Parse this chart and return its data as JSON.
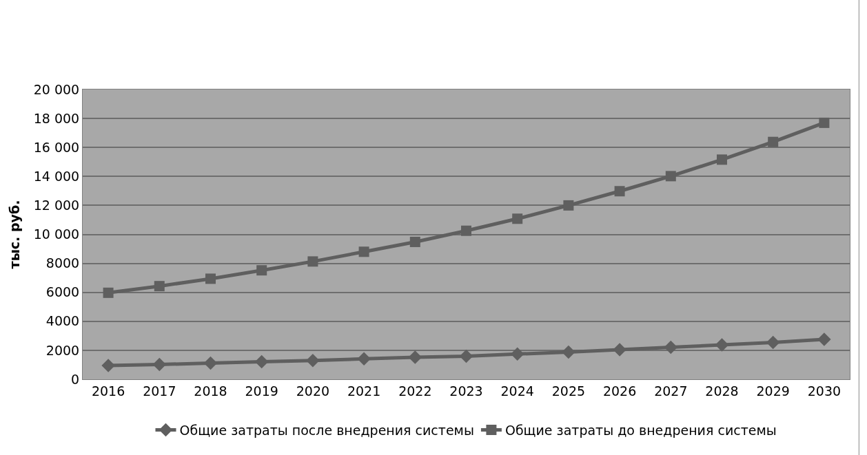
{
  "chart_data": {
    "type": "line",
    "ylabel": "тыс. руб.",
    "categories": [
      "2016",
      "2017",
      "2018",
      "2019",
      "2020",
      "2021",
      "2022",
      "2023",
      "2024",
      "2025",
      "2026",
      "2027",
      "2028",
      "2029",
      "2030"
    ],
    "series": [
      {
        "name": "Общие затраты после внедрения системы",
        "color": "#5f5f5f",
        "marker": "diamond",
        "values": [
          950,
          1020,
          1120,
          1210,
          1300,
          1410,
          1520,
          1590,
          1740,
          1880,
          2040,
          2210,
          2370,
          2540,
          2750
        ]
      },
      {
        "name": "Общие затраты до внедрения системы",
        "color": "#5f5f5f",
        "marker": "square",
        "values": [
          5970,
          6430,
          6940,
          7520,
          8130,
          8800,
          9480,
          10250,
          11080,
          12000,
          12980,
          14020,
          15160,
          16380,
          17700
        ]
      }
    ],
    "ylim": [
      0,
      20000
    ],
    "yticks": [
      0,
      2000,
      4000,
      6000,
      8000,
      {
        "value": 10000,
        "label": "10 000"
      },
      {
        "value": 12000,
        "label": "12 000"
      },
      {
        "value": 14000,
        "label": "14 000"
      },
      {
        "value": 16000,
        "label": "16 000"
      },
      {
        "value": 18000,
        "label": "18 000"
      },
      {
        "value": 20000,
        "label": "20 000"
      }
    ],
    "grid": "y",
    "legend": "bottom",
    "line_style": "solid"
  }
}
